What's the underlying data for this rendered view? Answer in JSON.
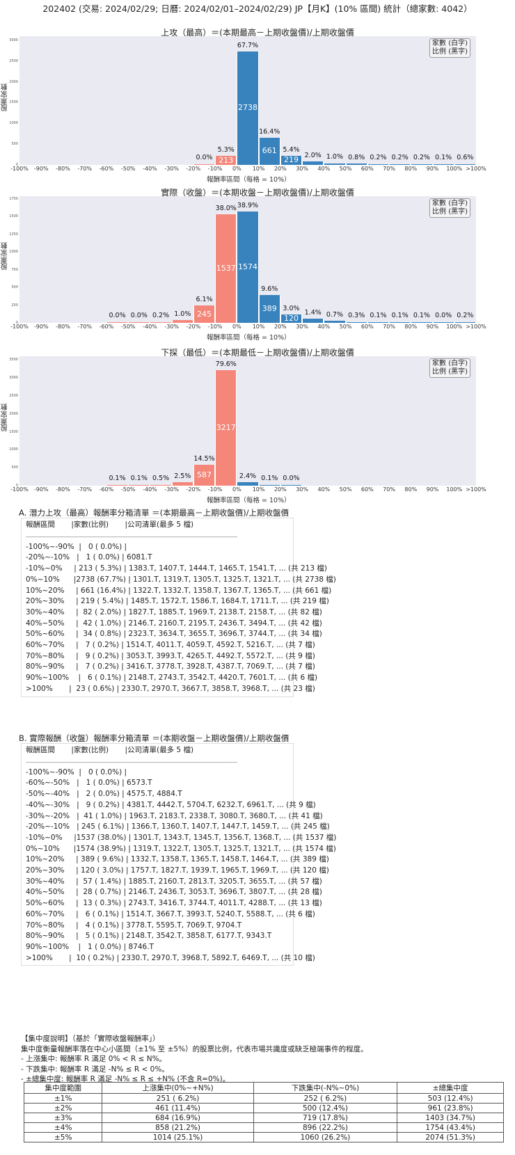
{
  "page_title": "202402 (交易: 2024/02/29; 日曆: 2024/02/01–2024/02/29) JP【月K】(10% 區間) 統計（總家數: 4042）",
  "colors": {
    "negative": "#f4877a",
    "positive": "#3883bd",
    "plot_bg": "#eaeaf2"
  },
  "legend": {
    "line1": "家數 (白字)",
    "line2": "比例 (黑字)"
  },
  "x_ticks": [
    "-100%",
    "-90%",
    "-80%",
    "-70%",
    "-60%",
    "-50%",
    "-40%",
    "-30%",
    "-20%",
    "-10%",
    "0%",
    "10%",
    "20%",
    "30%",
    "40%",
    "50%",
    "60%",
    "70%",
    "80%",
    "90%",
    "100%",
    ">100%"
  ],
  "chart_data": [
    {
      "type": "bar",
      "title": "上攻（最高）＝(本期最高－上期收盤價)/上期收盤價",
      "xlabel": "報酬率區間（每格 = 10%）",
      "ylabel": "股票家數",
      "yticks": [
        "0",
        "500",
        "1000",
        "1500",
        "2000",
        "2500",
        "3000"
      ],
      "ylim": [
        0,
        3100
      ],
      "categories": [
        "-100%~-90%",
        "-90%~-80%",
        "-80%~-70%",
        "-70%~-60%",
        "-60%~-50%",
        "-50%~-40%",
        "-40%~-30%",
        "-30%~-20%",
        "-20%~-10%",
        "-10%~0%",
        "0%~10%",
        "10%~20%",
        "20%~30%",
        "30%~40%",
        "40%~50%",
        "50%~60%",
        "60%~70%",
        "70%~80%",
        "80%~90%",
        "90%~100%",
        ">100%"
      ],
      "values": [
        0,
        0,
        0,
        0,
        0,
        0,
        0,
        0,
        1,
        213,
        2738,
        661,
        219,
        82,
        42,
        34,
        7,
        9,
        7,
        6,
        23
      ],
      "pct_labels": [
        "",
        "",
        "",
        "",
        "",
        "",
        "",
        "",
        "0.0%",
        "5.3%",
        "67.7%",
        "16.4%",
        "5.4%",
        "2.0%",
        "1.0%",
        "0.8%",
        "0.2%",
        "0.2%",
        "0.2%",
        "0.1%",
        "0.6%"
      ],
      "grid": false,
      "legend_position": "upper right"
    },
    {
      "type": "bar",
      "title": "實際（收盤）＝(本期收盤－上期收盤價)/上期收盤價",
      "xlabel": "報酬率區間（每格 = 10%）",
      "ylabel": "股票家數",
      "yticks": [
        "0",
        "250",
        "500",
        "750",
        "1000",
        "1250",
        "1500",
        "1750"
      ],
      "ylim": [
        0,
        1790
      ],
      "categories": [
        "-100%~-90%",
        "-90%~-80%",
        "-80%~-70%",
        "-70%~-60%",
        "-60%~-50%",
        "-50%~-40%",
        "-40%~-30%",
        "-30%~-20%",
        "-20%~-10%",
        "-10%~0%",
        "0%~10%",
        "10%~20%",
        "20%~30%",
        "30%~40%",
        "40%~50%",
        "50%~60%",
        "60%~70%",
        "70%~80%",
        "80%~90%",
        "90%~100%",
        ">100%"
      ],
      "values": [
        0,
        0,
        0,
        0,
        1,
        2,
        9,
        41,
        245,
        1537,
        1574,
        389,
        120,
        57,
        28,
        13,
        6,
        4,
        5,
        1,
        10
      ],
      "pct_labels": [
        "",
        "",
        "",
        "",
        "0.0%",
        "0.0%",
        "0.2%",
        "1.0%",
        "6.1%",
        "38.0%",
        "38.9%",
        "9.6%",
        "3.0%",
        "1.4%",
        "0.7%",
        "0.3%",
        "0.1%",
        "0.1%",
        "0.1%",
        "0.0%",
        "0.2%"
      ],
      "grid": false,
      "legend_position": "upper right"
    },
    {
      "type": "bar",
      "title": "下探（最低）＝(本期最低－上期收盤價)/上期收盤價",
      "xlabel": "報酬率區間（每格 = 10%）",
      "ylabel": "股票家數",
      "yticks": [
        "0",
        "500",
        "1000",
        "1500",
        "2000",
        "2500",
        "3000",
        "3500"
      ],
      "ylim": [
        0,
        3600
      ],
      "categories": [
        "-100%~-90%",
        "-90%~-80%",
        "-80%~-70%",
        "-70%~-60%",
        "-60%~-50%",
        "-50%~-40%",
        "-40%~-30%",
        "-30%~-20%",
        "-20%~-10%",
        "-10%~0%",
        "0%~10%",
        "10%~20%",
        "20%~30%",
        "30%~40%",
        "40%~50%",
        "50%~60%",
        "60%~70%",
        "70%~80%",
        "80%~90%",
        "90%~100%",
        ">100%"
      ],
      "values": [
        0,
        0,
        0,
        0,
        4,
        5,
        22,
        103,
        587,
        3217,
        99,
        4,
        1,
        0,
        0,
        0,
        0,
        0,
        0,
        0,
        0
      ],
      "pct_labels": [
        "",
        "",
        "",
        "",
        "0.1%",
        "0.1%",
        "0.5%",
        "2.5%",
        "14.5%",
        "79.6%",
        "2.4%",
        "0.1%",
        "0.0%",
        "",
        "",
        "",
        "",
        "",
        "",
        "",
        ""
      ],
      "grid": false,
      "legend_position": "upper right"
    }
  ],
  "list_a": {
    "title": "A. 潛力上攻（最高）報酬率分箱清單 ＝(本期最高－上期收盤價)/上期收盤價",
    "header": "報酬區間       |家數(比例)       |公司清單(最多 5 檔)",
    "separator": "------------------------------------------------------------------------------------------------------------------------------------------------------",
    "rows": [
      "-100%~-90%  |   0 ( 0.0%) |",
      "-20%~-10%   |   1 ( 0.0%) | 6081.T",
      "-10%~0%     | 213 ( 5.3%) | 1383.T, 1407.T, 1444.T, 1465.T, 1541.T, ... (共 213 檔)",
      "0%~10%      |2738 (67.7%) | 1301.T, 1319.T, 1305.T, 1325.T, 1321.T, ... (共 2738 檔)",
      "10%~20%     | 661 (16.4%) | 1322.T, 1332.T, 1358.T, 1367.T, 1365.T, ... (共 661 檔)",
      "20%~30%     | 219 ( 5.4%) | 1485.T, 1572.T, 1586.T, 1684.T, 1711.T, ... (共 219 檔)",
      "30%~40%     |  82 ( 2.0%) | 1827.T, 1885.T, 1969.T, 2138.T, 2158.T, ... (共 82 檔)",
      "40%~50%     |  42 ( 1.0%) | 2146.T, 2160.T, 2195.T, 2436.T, 3494.T, ... (共 42 檔)",
      "50%~60%     |  34 ( 0.8%) | 2323.T, 3634.T, 3655.T, 3696.T, 3744.T, ... (共 34 檔)",
      "60%~70%     |   7 ( 0.2%) | 1514.T, 4011.T, 4059.T, 4592.T, 5216.T, ... (共 7 檔)",
      "70%~80%     |   9 ( 0.2%) | 3053.T, 3993.T, 4265.T, 4492.T, 5572.T, ... (共 9 檔)",
      "80%~90%     |   7 ( 0.2%) | 3416.T, 3778.T, 3928.T, 4387.T, 7069.T, ... (共 7 檔)",
      "90%~100%    |   6 ( 0.1%) | 2148.T, 2743.T, 3542.T, 4420.T, 7601.T, ... (共 6 檔)",
      ">100%       |  23 ( 0.6%) | 2330.T, 2970.T, 3667.T, 3858.T, 3968.T, ... (共 23 檔)"
    ]
  },
  "list_b": {
    "title": "B. 實際報酬（收盤）報酬率分箱清單 ＝(本期收盤－上期收盤價)/上期收盤價",
    "header": "報酬區間       |家數(比例)       |公司清單(最多 5 檔)",
    "separator": "------------------------------------------------------------------------------------------------------------------------------------------------------",
    "rows": [
      "-100%~-90%  |   0 ( 0.0%) |",
      "-60%~-50%   |   1 ( 0.0%) | 6573.T",
      "-50%~-40%   |   2 ( 0.0%) | 4575.T, 4884.T",
      "-40%~-30%   |   9 ( 0.2%) | 4381.T, 4442.T, 5704.T, 6232.T, 6961.T, ... (共 9 檔)",
      "-30%~-20%   |  41 ( 1.0%) | 1963.T, 2183.T, 2338.T, 3080.T, 3680.T, ... (共 41 檔)",
      "-20%~-10%   | 245 ( 6.1%) | 1366.T, 1360.T, 1407.T, 1447.T, 1459.T, ... (共 245 檔)",
      "-10%~0%     |1537 (38.0%) | 1301.T, 1343.T, 1345.T, 1356.T, 1368.T, ... (共 1537 檔)",
      "0%~10%      |1574 (38.9%) | 1319.T, 1322.T, 1305.T, 1325.T, 1321.T, ... (共 1574 檔)",
      "10%~20%     | 389 ( 9.6%) | 1332.T, 1358.T, 1365.T, 1458.T, 1464.T, ... (共 389 檔)",
      "20%~30%     | 120 ( 3.0%) | 1757.T, 1827.T, 1939.T, 1965.T, 1969.T, ... (共 120 檔)",
      "30%~40%     |  57 ( 1.4%) | 1885.T, 2160.T, 2813.T, 3205.T, 3655.T, ... (共 57 檔)",
      "40%~50%     |  28 ( 0.7%) | 2146.T, 2436.T, 3053.T, 3696.T, 3807.T, ... (共 28 檔)",
      "50%~60%     |  13 ( 0.3%) | 2743.T, 3416.T, 3744.T, 4011.T, 4288.T, ... (共 13 檔)",
      "60%~70%     |   6 ( 0.1%) | 1514.T, 3667.T, 3993.T, 5240.T, 5588.T, ... (共 6 檔)",
      "70%~80%     |   4 ( 0.1%) | 3778.T, 5595.T, 7069.T, 9704.T",
      "80%~90%     |   5 ( 0.1%) | 2148.T, 3542.T, 3858.T, 6177.T, 9343.T",
      "90%~100%    |   1 ( 0.0%) | 8746.T",
      ">100%       |  10 ( 0.2%) | 2330.T, 2970.T, 3968.T, 5892.T, 6469.T, ... (共 10 檔)"
    ]
  },
  "notes": {
    "heading": "【集中度說明】（基於「實際收盤報酬率」）",
    "line1": "集中度衡量報酬率落在中心小區間（±1% 至 ±5%）的股票比例，代表市場共識度或缺乏極端事件的程度。",
    "line2": " - 上漲集中: 報酬率 R 滿足 0% < R ≤ N%。",
    "line3": " - 下跌集中: 報酬率 R 滿足 -N% ≤ R < 0%。",
    "line4": " - ±總集中度: 報酬率 R 滿足 -N% ≤ R ≤ +N% (不含 R=0%)。"
  },
  "concentration_table": {
    "headers": [
      "集中度範圍",
      "上漲集中(0%~+N%)",
      "下跌集中(-N%~0%)",
      "±總集中度"
    ],
    "rows": [
      [
        "±1%",
        "251 ( 6.2%)",
        "252 ( 6.2%)",
        "503 (12.4%)"
      ],
      [
        "±2%",
        "461 (11.4%)",
        "500 (12.4%)",
        "961 (23.8%)"
      ],
      [
        "±3%",
        "684 (16.9%)",
        "719 (17.8%)",
        "1403 (34.7%)"
      ],
      [
        "±4%",
        "858 (21.2%)",
        "896 (22.2%)",
        "1754 (43.4%)"
      ],
      [
        "±5%",
        "1014 (25.1%)",
        "1060 (26.2%)",
        "2074 (51.3%)"
      ]
    ]
  }
}
